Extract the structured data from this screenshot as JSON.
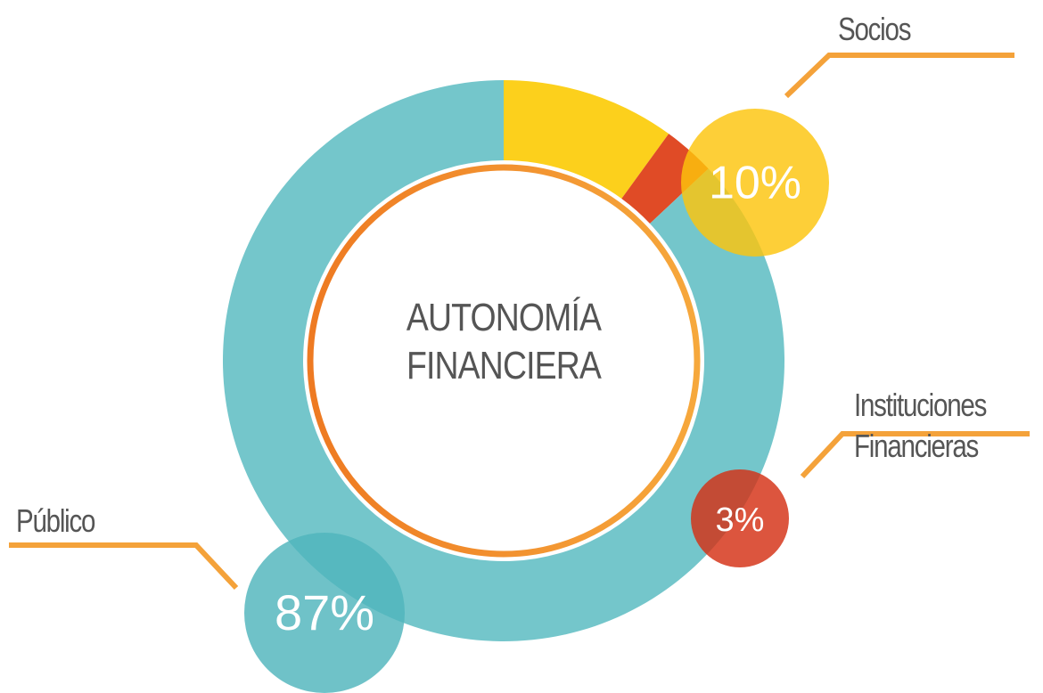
{
  "chart_data": {
    "type": "donut",
    "title": "AUTONOMÍA FINANCIERA",
    "categories": [
      "Socios",
      "Instituciones Financieras",
      "Público"
    ],
    "values": [
      10,
      3,
      87
    ],
    "value_labels": [
      "10%",
      "3%",
      "87%"
    ],
    "colors": [
      "#fcd01c",
      "#e04b26",
      "#74c6cb"
    ]
  }
}
